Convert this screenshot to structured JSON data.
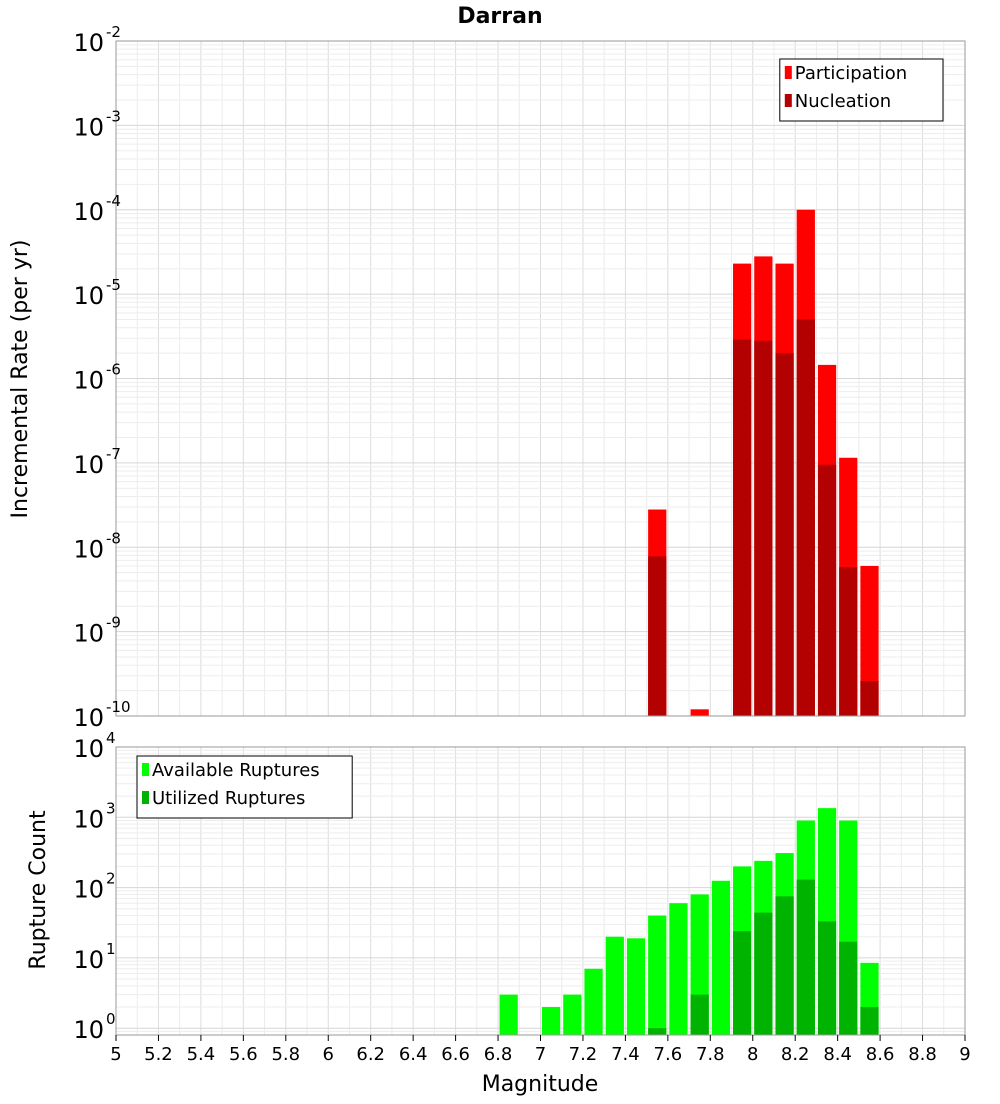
{
  "title": "Darran",
  "x_axis": {
    "label": "Magnitude",
    "range": [
      5,
      9
    ],
    "ticks": [
      "5",
      "5.2",
      "5.4",
      "5.6",
      "5.8",
      "6",
      "6.2",
      "6.4",
      "6.6",
      "6.8",
      "7",
      "7.2",
      "7.4",
      "7.6",
      "7.8",
      "8",
      "8.2",
      "8.4",
      "8.6",
      "8.8",
      "9"
    ]
  },
  "chart_data": [
    {
      "type": "bar",
      "ylabel": "Incremental Rate (per yr)",
      "yscale": "log",
      "ylim": [
        1e-10,
        0.01
      ],
      "ytick_exponents": [
        "-10",
        "-9",
        "-8",
        "-7",
        "-6",
        "-5",
        "-4",
        "-3",
        "-2"
      ],
      "legend": {
        "placement": "top-right",
        "entries": [
          "Participation",
          "Nucleation"
        ]
      },
      "colors": {
        "Participation": "#ff0000",
        "Nucleation": "#b30000"
      },
      "x": [
        7.55,
        7.75,
        7.95,
        8.05,
        8.15,
        8.25,
        8.35,
        8.45,
        8.55
      ],
      "series": [
        {
          "name": "Participation",
          "values": [
            2.8e-08,
            1.2e-10,
            2.3e-05,
            2.8e-05,
            2.3e-05,
            0.0001,
            1.45e-06,
            1.15e-07,
            6e-09
          ]
        },
        {
          "name": "Nucleation",
          "values": [
            7.8e-09,
            null,
            2.9e-06,
            2.8e-06,
            2e-06,
            5e-06,
            9.5e-08,
            5.8e-09,
            2.6e-10
          ]
        }
      ],
      "grid": true
    },
    {
      "type": "bar",
      "ylabel": "Rupture Count",
      "yscale": "log",
      "ylim": [
        0.8,
        10000
      ],
      "ytick_exponents": [
        "0",
        "1",
        "2",
        "3",
        "4"
      ],
      "legend": {
        "placement": "top-left",
        "entries": [
          "Available Ruptures",
          "Utilized Ruptures"
        ]
      },
      "colors": {
        "Available Ruptures": "#00ff00",
        "Utilized Ruptures": "#00b300"
      },
      "x": [
        6.85,
        7.05,
        7.15,
        7.25,
        7.35,
        7.45,
        7.55,
        7.65,
        7.75,
        7.85,
        7.95,
        8.05,
        8.15,
        8.25,
        8.35,
        8.45,
        8.55
      ],
      "series": [
        {
          "name": "Available Ruptures",
          "values": [
            3,
            2,
            3,
            7,
            20,
            19,
            40,
            60,
            80,
            125,
            200,
            240,
            310,
            900,
            1350,
            900,
            8.5
          ]
        },
        {
          "name": "Utilized Ruptures",
          "values": [
            null,
            null,
            null,
            null,
            null,
            null,
            1,
            null,
            3,
            null,
            24,
            44,
            75,
            130,
            33,
            17,
            2
          ]
        }
      ],
      "grid": true
    }
  ]
}
